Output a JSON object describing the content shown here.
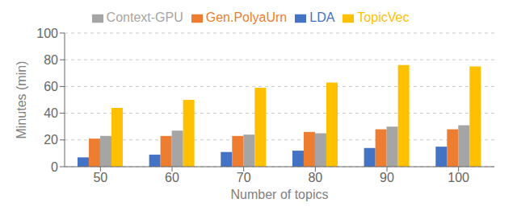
{
  "chart_data": {
    "type": "bar",
    "categories": [
      50,
      60,
      70,
      80,
      90,
      100
    ],
    "series": [
      {
        "name": "LDA",
        "color": "#4472C4",
        "values": [
          7,
          9,
          11,
          12,
          14,
          15
        ]
      },
      {
        "name": "Gen.PolyaUrn",
        "color": "#ED7D31",
        "values": [
          21,
          23,
          23,
          26,
          28,
          28
        ]
      },
      {
        "name": "Context-GPU",
        "color": "#A5A5A5",
        "values": [
          23,
          27,
          24,
          25,
          30,
          31
        ]
      },
      {
        "name": "TopicVec",
        "color": "#FFC000",
        "values": [
          44,
          50,
          59,
          63,
          76,
          75
        ]
      }
    ],
    "xlabel": "Number of topics",
    "ylabel": "Minutes (min)",
    "ylim": [
      0,
      100
    ],
    "yticks": [
      0,
      20,
      40,
      60,
      80,
      100
    ],
    "grid": true,
    "legend": "top"
  }
}
